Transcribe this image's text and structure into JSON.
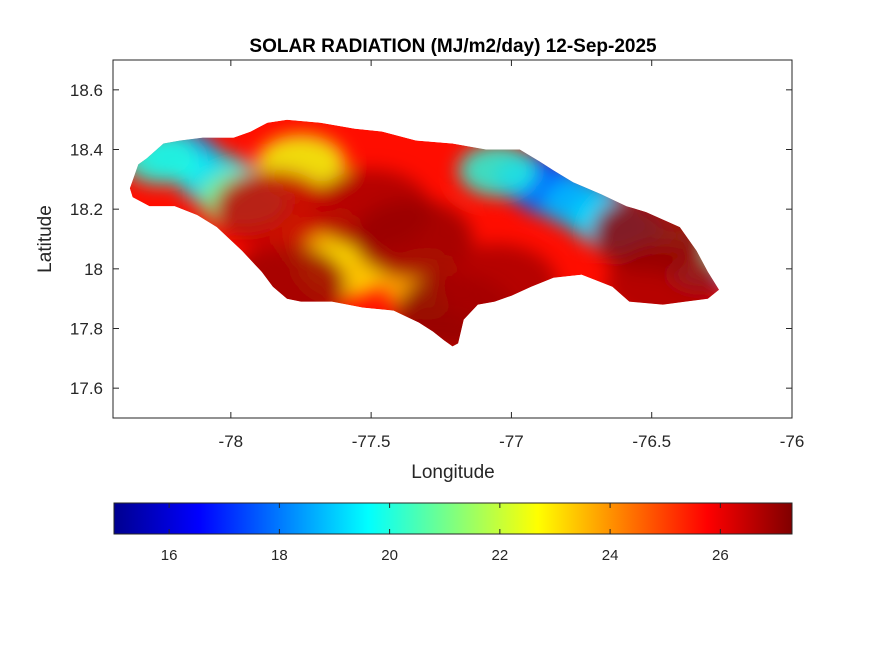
{
  "chart_data": {
    "type": "heatmap",
    "title": "SOLAR RADIATION (MJ/m2/day) 12-Sep-2025",
    "xlabel": "Longitude",
    "ylabel": "Latitude",
    "xlim": [
      -78.42,
      -76.0
    ],
    "ylim": [
      17.5,
      18.7
    ],
    "xticks": [
      -78,
      -77.5,
      -77,
      -76.5,
      -76
    ],
    "yticks": [
      17.6,
      17.8,
      18,
      18.2,
      18.4,
      18.6
    ],
    "xtick_labels": [
      "-78",
      "-77.5",
      "-77",
      "-76.5",
      "-76"
    ],
    "ytick_labels": [
      "17.6",
      "17.8",
      "18",
      "18.2",
      "18.4",
      "18.6"
    ],
    "colormap": "jet",
    "colorbar": {
      "orientation": "horizontal",
      "location": "bottom",
      "range": [
        15,
        27.3
      ],
      "ticks": [
        16,
        18,
        20,
        22,
        24,
        26
      ],
      "tick_labels": [
        "16",
        "18",
        "20",
        "22",
        "24",
        "26"
      ]
    },
    "region_outline": [
      [
        -78.36,
        18.27
      ],
      [
        -78.33,
        18.35
      ],
      [
        -78.3,
        18.37
      ],
      [
        -78.24,
        18.42
      ],
      [
        -78.18,
        18.43
      ],
      [
        -78.1,
        18.44
      ],
      [
        -77.99,
        18.44
      ],
      [
        -77.93,
        18.46
      ],
      [
        -77.87,
        18.49
      ],
      [
        -77.8,
        18.5
      ],
      [
        -77.68,
        18.49
      ],
      [
        -77.56,
        18.47
      ],
      [
        -77.46,
        18.46
      ],
      [
        -77.34,
        18.43
      ],
      [
        -77.21,
        18.42
      ],
      [
        -77.09,
        18.4
      ],
      [
        -76.97,
        18.4
      ],
      [
        -76.9,
        18.36
      ],
      [
        -76.85,
        18.33
      ],
      [
        -76.78,
        18.29
      ],
      [
        -76.68,
        18.25
      ],
      [
        -76.59,
        18.21
      ],
      [
        -76.52,
        18.19
      ],
      [
        -76.4,
        18.14
      ],
      [
        -76.34,
        18.06
      ],
      [
        -76.3,
        17.99
      ],
      [
        -76.26,
        17.93
      ],
      [
        -76.3,
        17.9
      ],
      [
        -76.38,
        17.89
      ],
      [
        -76.46,
        17.88
      ],
      [
        -76.58,
        17.89
      ],
      [
        -76.64,
        17.94
      ],
      [
        -76.75,
        17.98
      ],
      [
        -76.85,
        17.97
      ],
      [
        -76.93,
        17.94
      ],
      [
        -77.0,
        17.91
      ],
      [
        -77.06,
        17.89
      ],
      [
        -77.12,
        17.88
      ],
      [
        -77.17,
        17.83
      ],
      [
        -77.19,
        17.75
      ],
      [
        -77.21,
        17.74
      ],
      [
        -77.24,
        17.76
      ],
      [
        -77.28,
        17.79
      ],
      [
        -77.33,
        17.82
      ],
      [
        -77.42,
        17.86
      ],
      [
        -77.53,
        17.87
      ],
      [
        -77.64,
        17.89
      ],
      [
        -77.75,
        17.89
      ],
      [
        -77.8,
        17.9
      ],
      [
        -77.85,
        17.94
      ],
      [
        -77.89,
        17.99
      ],
      [
        -77.96,
        18.06
      ],
      [
        -78.05,
        18.14
      ],
      [
        -78.12,
        18.18
      ],
      [
        -78.2,
        18.21
      ],
      [
        -78.29,
        18.21
      ],
      [
        -78.35,
        18.24
      ]
    ],
    "field_features": [
      {
        "lon": -78.18,
        "lat": 18.38,
        "value": 18.5
      },
      {
        "lon": -78.05,
        "lat": 18.3,
        "value": 19.5
      },
      {
        "lon": -78.25,
        "lat": 18.37,
        "value": 20.0
      },
      {
        "lon": -77.95,
        "lat": 18.23,
        "value": 21.0
      },
      {
        "lon": -77.75,
        "lat": 18.35,
        "value": 22.5
      },
      {
        "lon": -77.68,
        "lat": 18.1,
        "value": 23.5
      },
      {
        "lon": -77.6,
        "lat": 18.0,
        "value": 23.0
      },
      {
        "lon": -77.3,
        "lat": 17.95,
        "value": 23.5
      },
      {
        "lon": -76.92,
        "lat": 18.3,
        "value": 16.8
      },
      {
        "lon": -76.85,
        "lat": 18.26,
        "value": 18.0
      },
      {
        "lon": -76.75,
        "lat": 18.22,
        "value": 18.8
      },
      {
        "lon": -76.65,
        "lat": 18.16,
        "value": 19.2
      },
      {
        "lon": -77.05,
        "lat": 18.33,
        "value": 20.0
      },
      {
        "lon": -76.58,
        "lat": 18.12,
        "value": 19.0
      },
      {
        "lon": -76.32,
        "lat": 18.02,
        "value": 18.5
      },
      {
        "lon": -76.35,
        "lat": 18.06,
        "value": 20.5
      },
      {
        "lon": -77.5,
        "lat": 18.2,
        "value": 26.8
      },
      {
        "lon": -77.35,
        "lat": 18.1,
        "value": 27.0
      },
      {
        "lon": -77.2,
        "lat": 17.85,
        "value": 27.2
      },
      {
        "lon": -77.05,
        "lat": 17.95,
        "value": 26.8
      },
      {
        "lon": -76.45,
        "lat": 17.95,
        "value": 26.8
      },
      {
        "lon": -76.5,
        "lat": 18.12,
        "value": 27.0
      },
      {
        "lon": -77.8,
        "lat": 17.95,
        "value": 27.0
      },
      {
        "lon": -77.85,
        "lat": 18.2,
        "value": 26.5
      }
    ]
  }
}
